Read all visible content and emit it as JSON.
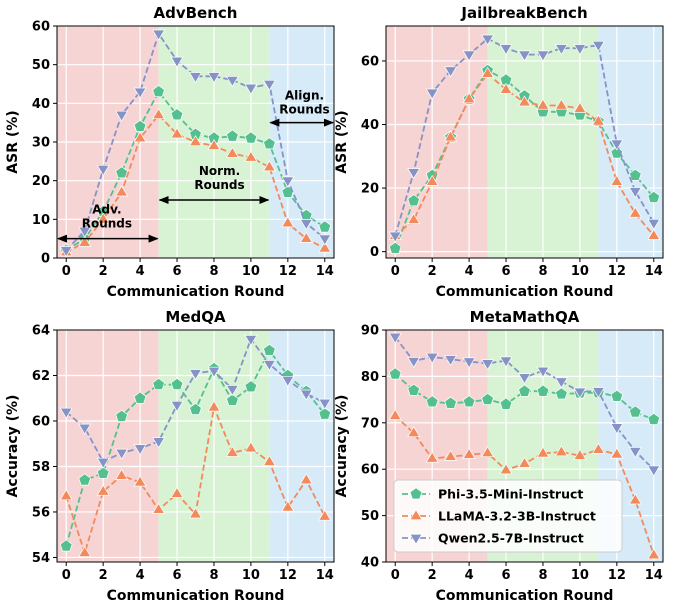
{
  "chart_data": [
    {
      "type": "line",
      "title": "AdvBench",
      "xlabel": "Communication Round",
      "ylabel": "ASR (%)",
      "xlim": [
        -0.5,
        14.5
      ],
      "ylim": [
        0,
        60
      ],
      "xticks": [
        0,
        2,
        4,
        6,
        8,
        10,
        12,
        14
      ],
      "yticks": [
        0,
        10,
        20,
        30,
        40,
        50,
        60
      ],
      "phases": [
        {
          "from": -0.5,
          "to": 5,
          "color": "#f7d4d4"
        },
        {
          "from": 5,
          "to": 11,
          "color": "#d8f2d4"
        },
        {
          "from": 11,
          "to": 14.5,
          "color": "#d6eaf8"
        }
      ],
      "grid": true,
      "x": [
        0,
        1,
        2,
        3,
        4,
        5,
        6,
        7,
        8,
        9,
        10,
        11,
        12,
        13,
        14
      ],
      "series": [
        {
          "name": "Phi-3.5-Mini-Instruct",
          "color": "#55c08f",
          "marker": "pentagon",
          "values": [
            2,
            5,
            12,
            22,
            34,
            43,
            37,
            32,
            31,
            31.5,
            31,
            29.5,
            17,
            11,
            8
          ]
        },
        {
          "name": "LLaMA-3.2-3B-Instruct",
          "color": "#f28a5c",
          "marker": "triangle-up",
          "values": [
            1.5,
            4,
            10,
            17,
            31,
            37,
            32,
            30,
            29,
            27,
            26,
            23.5,
            9,
            5,
            2.5
          ]
        },
        {
          "name": "Qwen2.5-7B-Instruct",
          "color": "#8593c7",
          "marker": "triangle-down",
          "values": [
            2,
            7,
            23,
            37,
            43,
            58,
            51,
            47,
            47,
            46,
            44,
            45,
            20,
            9,
            5
          ]
        }
      ],
      "annotations": [
        {
          "lines": [
            "Adv.",
            "Rounds"
          ],
          "arrow_from": -0.5,
          "arrow_to": 5,
          "arrow_y": 5,
          "text_x": 2.2,
          "text_y": 11.5
        },
        {
          "lines": [
            "Norm.",
            "Rounds"
          ],
          "arrow_from": 5,
          "arrow_to": 11,
          "arrow_y": 15,
          "text_x": 8.3,
          "text_y": 21.5
        },
        {
          "lines": [
            "Align.",
            "Rounds"
          ],
          "arrow_from": 11,
          "arrow_to": 14.5,
          "arrow_y": 35,
          "text_x": 12.9,
          "text_y": 41
        }
      ]
    },
    {
      "type": "line",
      "title": "JailbreakBench",
      "xlabel": "Communication Round",
      "ylabel": "ASR (%)",
      "xlim": [
        -0.5,
        14.5
      ],
      "ylim": [
        -2,
        71
      ],
      "xticks": [
        0,
        2,
        4,
        6,
        8,
        10,
        12,
        14
      ],
      "yticks": [
        0,
        20,
        40,
        60
      ],
      "phases": [
        {
          "from": -0.5,
          "to": 5,
          "color": "#f7d4d4"
        },
        {
          "from": 5,
          "to": 11,
          "color": "#d8f2d4"
        },
        {
          "from": 11,
          "to": 14.5,
          "color": "#d6eaf8"
        }
      ],
      "grid": true,
      "x": [
        0,
        1,
        2,
        3,
        4,
        5,
        6,
        7,
        8,
        9,
        10,
        11,
        12,
        13,
        14
      ],
      "series": [
        {
          "name": "Phi-3.5-Mini-Instruct",
          "color": "#55c08f",
          "marker": "pentagon",
          "values": [
            1,
            16,
            24,
            36,
            48,
            57,
            54,
            49,
            44,
            44,
            43,
            41,
            31,
            24,
            17
          ]
        },
        {
          "name": "LLaMA-3.2-3B-Instruct",
          "color": "#f28a5c",
          "marker": "triangle-up",
          "values": [
            5,
            10,
            22,
            36,
            48,
            56,
            51,
            47,
            46,
            46,
            45,
            41,
            22,
            12,
            5
          ]
        },
        {
          "name": "Qwen2.5-7B-Instruct",
          "color": "#8593c7",
          "marker": "triangle-down",
          "values": [
            5,
            25,
            50,
            57,
            62,
            67,
            64,
            62,
            62,
            64,
            64,
            65,
            34,
            19,
            9
          ]
        }
      ]
    },
    {
      "type": "line",
      "title": "MedQA",
      "xlabel": "Communication Round",
      "ylabel": "Accuracy (%)",
      "xlim": [
        -0.5,
        14.5
      ],
      "ylim": [
        53.8,
        64
      ],
      "xticks": [
        0,
        2,
        4,
        6,
        8,
        10,
        12,
        14
      ],
      "yticks": [
        54,
        56,
        58,
        60,
        62,
        64
      ],
      "phases": [
        {
          "from": -0.5,
          "to": 5,
          "color": "#f7d4d4"
        },
        {
          "from": 5,
          "to": 11,
          "color": "#d8f2d4"
        },
        {
          "from": 11,
          "to": 14.5,
          "color": "#d6eaf8"
        }
      ],
      "grid": true,
      "x": [
        0,
        1,
        2,
        3,
        4,
        5,
        6,
        7,
        8,
        9,
        10,
        11,
        12,
        13,
        14
      ],
      "series": [
        {
          "name": "Phi-3.5-Mini-Instruct",
          "color": "#55c08f",
          "marker": "pentagon",
          "values": [
            54.5,
            57.4,
            57.7,
            60.2,
            61.0,
            61.6,
            61.6,
            60.5,
            62.3,
            60.9,
            61.5,
            63.1,
            62.0,
            61.3,
            60.3
          ]
        },
        {
          "name": "LLaMA-3.2-3B-Instruct",
          "color": "#f28a5c",
          "marker": "triangle-up",
          "values": [
            56.7,
            54.2,
            56.9,
            57.6,
            57.3,
            56.1,
            56.8,
            55.9,
            60.6,
            58.6,
            58.8,
            58.2,
            56.2,
            57.4,
            55.8
          ]
        },
        {
          "name": "Qwen2.5-7B-Instruct",
          "color": "#8593c7",
          "marker": "triangle-down",
          "values": [
            60.4,
            59.7,
            58.2,
            58.6,
            58.8,
            59.1,
            60.7,
            62.1,
            62.2,
            61.4,
            63.6,
            62.5,
            61.8,
            61.2,
            60.8
          ]
        }
      ]
    },
    {
      "type": "line",
      "title": "MetaMathQA",
      "xlabel": "Communication Round",
      "ylabel": "Accuracy (%)",
      "xlim": [
        -0.5,
        14.5
      ],
      "ylim": [
        40,
        90
      ],
      "xticks": [
        0,
        2,
        4,
        6,
        8,
        10,
        12,
        14
      ],
      "yticks": [
        40,
        50,
        60,
        70,
        80,
        90
      ],
      "phases": [
        {
          "from": -0.5,
          "to": 5,
          "color": "#f7d4d4"
        },
        {
          "from": 5,
          "to": 11,
          "color": "#d8f2d4"
        },
        {
          "from": 11,
          "to": 14.5,
          "color": "#d6eaf8"
        }
      ],
      "grid": true,
      "legend_position": "lower-left",
      "x": [
        0,
        1,
        2,
        3,
        4,
        5,
        6,
        7,
        8,
        9,
        10,
        11,
        12,
        13,
        14
      ],
      "series": [
        {
          "name": "Phi-3.5-Mini-Instruct",
          "color": "#55c08f",
          "marker": "pentagon",
          "values": [
            80.5,
            77,
            74.5,
            74.2,
            74.5,
            75,
            74,
            76.8,
            76.8,
            76.2,
            76.4,
            76.5,
            75.7,
            72.3,
            70.7
          ]
        },
        {
          "name": "LLaMA-3.2-3B-Instruct",
          "color": "#f28a5c",
          "marker": "triangle-up",
          "values": [
            71.5,
            67.8,
            62.3,
            62.7,
            63.1,
            63.5,
            59.8,
            61.2,
            63.4,
            63.7,
            62.9,
            64.2,
            63.2,
            53.3,
            41.5
          ]
        },
        {
          "name": "Qwen2.5-7B-Instruct",
          "color": "#8593c7",
          "marker": "triangle-down",
          "values": [
            88.5,
            83.3,
            84.2,
            83.7,
            83.2,
            82.8,
            83.4,
            79.8,
            81.2,
            78.9,
            76.7,
            76.8,
            69,
            63.9,
            59.9
          ]
        }
      ]
    }
  ]
}
